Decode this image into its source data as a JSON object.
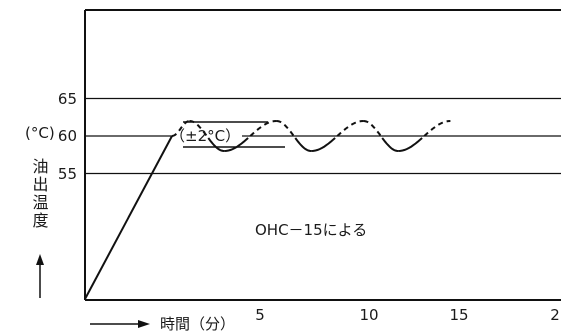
{
  "chart_data": {
    "type": "line",
    "title": "",
    "xlabel": "時間（分）",
    "ylabel": "油出温度",
    "yunit": "(°C)",
    "xlim": [
      0,
      20
    ],
    "x_ticks": [
      "5",
      "10",
      "15",
      "2"
    ],
    "y_ticks": [
      "65",
      "60",
      "55"
    ],
    "reference_lines": [
      65,
      60,
      55
    ],
    "tolerance_label": "（±2°C）",
    "annotation": "OHC－15による",
    "series": [
      {
        "values": [
          {
            "x": 0,
            "y": 20
          },
          {
            "x": 5,
            "y": 60
          },
          {
            "x": 6,
            "y": 62
          },
          {
            "x": 8,
            "y": 58
          },
          {
            "x": 11,
            "y": 62
          },
          {
            "x": 13,
            "y": 58
          },
          {
            "x": 16,
            "y": 62
          },
          {
            "x": 18,
            "y": 58
          },
          {
            "x": 21,
            "y": 62
          }
        ]
      }
    ]
  }
}
